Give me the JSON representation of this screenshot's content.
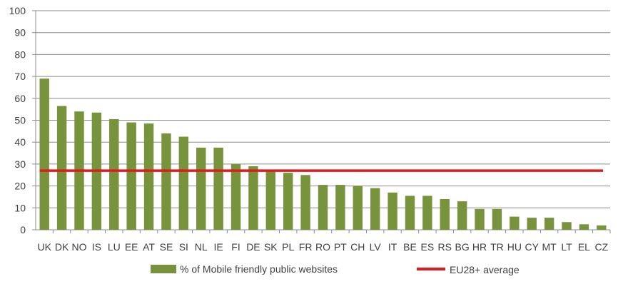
{
  "chart_data": {
    "type": "bar",
    "categories": [
      "UK",
      "DK",
      "NO",
      "IS",
      "LU",
      "EE",
      "AT",
      "SE",
      "SI",
      "NL",
      "IE",
      "FI",
      "DE",
      "SK",
      "PL",
      "FR",
      "RO",
      "PT",
      "CH",
      "LV",
      "IT",
      "BE",
      "ES",
      "RS",
      "BG",
      "HR",
      "TR",
      "HU",
      "CY",
      "MT",
      "LT",
      "EL",
      "CZ"
    ],
    "series": [
      {
        "name": "% of Mobile friendly public websites",
        "type": "bar",
        "color": "#77933c",
        "values": [
          69,
          56.5,
          54,
          53.5,
          50.5,
          49,
          48.5,
          44,
          42.5,
          37.5,
          37.5,
          30,
          29,
          27,
          26,
          25,
          20.5,
          20.5,
          20,
          19,
          17,
          15.5,
          15.5,
          14,
          13,
          9.5,
          9.5,
          6,
          5.5,
          5.5,
          3.5,
          2.5,
          2
        ]
      },
      {
        "name": "EU28+ average",
        "type": "line",
        "color": "#e31a1c",
        "value": 27
      }
    ],
    "xlabel": "",
    "ylabel": "",
    "ylim": [
      0,
      100
    ],
    "yticks": [
      0,
      10,
      20,
      30,
      40,
      50,
      60,
      70,
      80,
      90,
      100
    ],
    "grid": true,
    "legend_position": "bottom"
  }
}
